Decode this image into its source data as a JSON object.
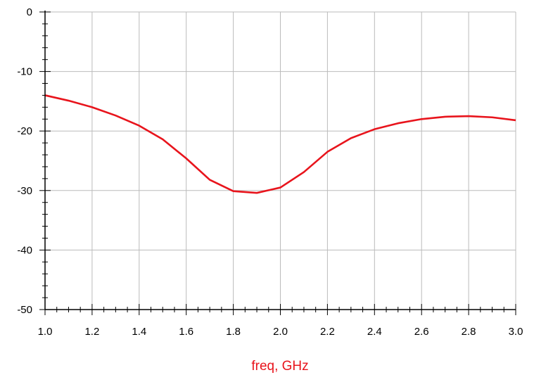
{
  "chart_data": {
    "type": "line",
    "xlabel": "freq, GHz",
    "ylabel": "",
    "xlim": [
      1.0,
      3.0
    ],
    "ylim": [
      -50,
      0
    ],
    "grid": true,
    "x_ticks": [
      "1.0",
      "1.2",
      "1.4",
      "1.6",
      "1.8",
      "2.0",
      "2.2",
      "2.4",
      "2.6",
      "2.8",
      "3.0"
    ],
    "y_ticks": [
      "0",
      "-10",
      "-20",
      "-30",
      "-40",
      "-50"
    ],
    "series": [
      {
        "color": "#e8141c",
        "x": [
          1.0,
          1.1,
          1.2,
          1.3,
          1.4,
          1.5,
          1.6,
          1.7,
          1.8,
          1.9,
          2.0,
          2.1,
          2.2,
          2.3,
          2.4,
          2.5,
          2.6,
          2.7,
          2.8,
          2.9,
          3.0
        ],
        "y": [
          -14.0,
          -14.9,
          -16.0,
          -17.4,
          -19.1,
          -21.4,
          -24.6,
          -28.2,
          -30.1,
          -30.4,
          -29.5,
          -26.9,
          -23.5,
          -21.2,
          -19.7,
          -18.7,
          -18.0,
          -17.6,
          -17.5,
          -17.7,
          -18.2
        ]
      }
    ]
  },
  "colors": {
    "axis": "#000000",
    "grid": "#bbbbbb",
    "xlabel": "#e8141c"
  }
}
